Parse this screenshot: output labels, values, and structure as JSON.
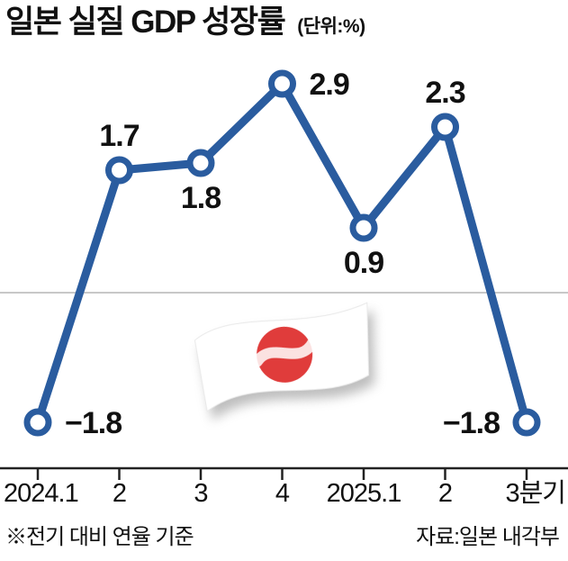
{
  "header": {
    "title": "일본 실질 GDP 성장률",
    "unit": "(단위:%)"
  },
  "footer": {
    "note": "※전기 대비 연율 기준",
    "source": "자료:일본 내각부"
  },
  "colors": {
    "line": "#2a5c9f",
    "marker_fill": "#ffffff",
    "zero_line": "#c8c8c8",
    "axis": "#222222",
    "text": "#111111",
    "flag_red": "#e03c3b",
    "flag_white": "#ffffff"
  },
  "chart_data": {
    "type": "line",
    "title": "일본 실질 GDP 성장률",
    "unit": "%",
    "categories": [
      "2024.1",
      "2",
      "3",
      "4",
      "2025.1",
      "2",
      "3분기"
    ],
    "values": [
      -1.8,
      1.7,
      1.8,
      2.9,
      0.9,
      2.3,
      -1.8
    ],
    "point_labels": [
      "−1.8",
      "1.7",
      "1.8",
      "2.9",
      "0.9",
      "2.3",
      "−1.8"
    ],
    "label_positions": [
      "right",
      "above",
      "below",
      "right",
      "below",
      "above",
      "left"
    ],
    "ylim": [
      -2.4,
      3.4
    ],
    "zero_line": true,
    "grid": false,
    "legend": "none",
    "marker": "open-circle",
    "annotations": [
      "japan-flag"
    ]
  }
}
